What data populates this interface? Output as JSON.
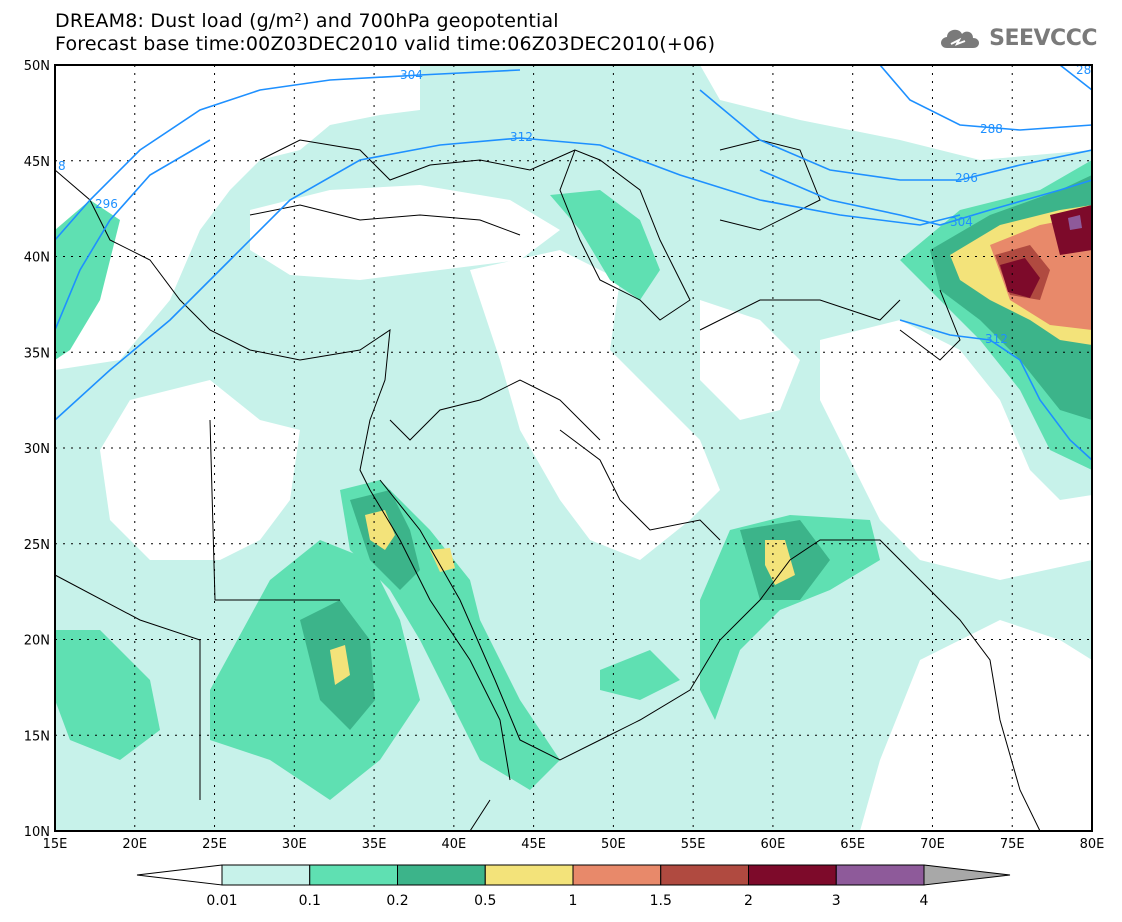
{
  "title_line1": "DREAM8: Dust load (g/m²) and 700hPa geopotential",
  "title_line2": "Forecast base time:00Z03DEC2010 valid time:06Z03DEC2010(+06)",
  "logo_text": "SEEVCCC",
  "map": {
    "lon_range": [
      15,
      80
    ],
    "lat_range": [
      10,
      50
    ],
    "lon_ticks": [
      "15E",
      "20E",
      "25E",
      "30E",
      "35E",
      "40E",
      "45E",
      "50E",
      "55E",
      "60E",
      "65E",
      "70E",
      "75E",
      "80E"
    ],
    "lat_ticks": [
      "10N",
      "15N",
      "20N",
      "25N",
      "30N",
      "35N",
      "40N",
      "45N",
      "50N"
    ],
    "contour_labels": [
      "304",
      "312",
      "296",
      "288",
      "28",
      "296",
      "304",
      "312",
      "8",
      "296"
    ],
    "contour_color": "#1e90ff"
  },
  "colorbar": {
    "labels": [
      "0.01",
      "0.1",
      "0.2",
      "0.5",
      "1",
      "1.5",
      "2",
      "3",
      "4"
    ],
    "colors": [
      "#c7f2ea",
      "#5fe0b2",
      "#3cb48a",
      "#f3e37a",
      "#e8896a",
      "#b04a40",
      "#7d0a2a",
      "#8e5a9a",
      "#a8a8a8"
    ]
  }
}
